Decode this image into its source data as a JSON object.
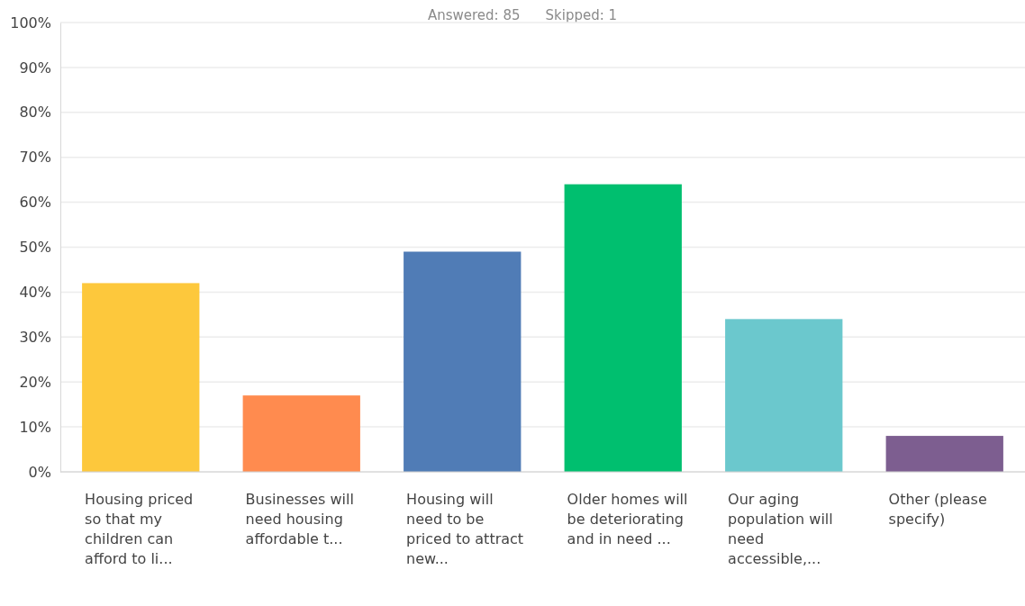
{
  "chart_data": {
    "type": "bar",
    "title": "Answered: 85",
    "subtitle": "Skipped: 1",
    "categories": [
      "Housing priced so that my children can afford to li...",
      "Businesses will need housing affordable t...",
      "Housing will need to be priced to attract new...",
      "Older homes will be deteriorating and in need ...",
      "Our aging population will need accessible,...",
      "Other (please specify)"
    ],
    "values": [
      42,
      17,
      49,
      64,
      34,
      8
    ],
    "colors": [
      "#fdc83c",
      "#ff8b4f",
      "#507cb6",
      "#00bf6f",
      "#6bc8cd",
      "#7d5e90"
    ],
    "ylim": [
      0,
      100
    ],
    "yticks": [
      {
        "value": 0,
        "label": "0%"
      },
      {
        "value": 10,
        "label": "10%"
      },
      {
        "value": 20,
        "label": "20%"
      },
      {
        "value": 30,
        "label": "30%"
      },
      {
        "value": 40,
        "label": "40%"
      },
      {
        "value": 50,
        "label": "50%"
      },
      {
        "value": 60,
        "label": "60%"
      },
      {
        "value": 70,
        "label": "70%"
      },
      {
        "value": 80,
        "label": "80%"
      },
      {
        "value": 90,
        "label": "90%"
      },
      {
        "value": 100,
        "label": "100%"
      }
    ],
    "grid": "y"
  }
}
